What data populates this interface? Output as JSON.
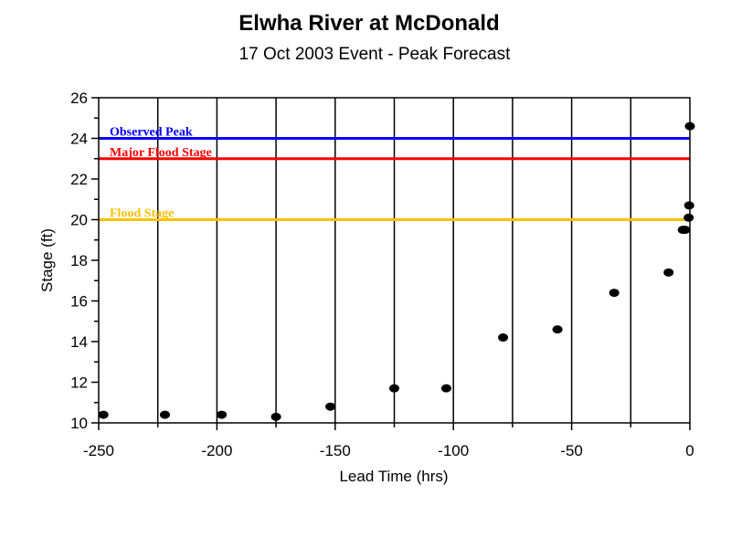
{
  "chart_data": {
    "type": "scatter",
    "title": "Elwha River at McDonald",
    "subtitle": "17 Oct 2003 Event - Peak Forecast",
    "xlabel": "Lead Time (hrs)",
    "ylabel": "Stage (ft)",
    "xlim": [
      -250,
      0
    ],
    "ylim": [
      10,
      26
    ],
    "x_ticks": [
      -250,
      -200,
      -150,
      -100,
      -50,
      0
    ],
    "y_ticks": [
      10,
      12,
      14,
      16,
      18,
      20,
      22,
      24,
      26
    ],
    "grid": "vertical",
    "reference_lines": [
      {
        "label": "Observed Peak",
        "y": 24.0,
        "color": "#0000ff"
      },
      {
        "label": "Major Flood Stage",
        "y": 23.0,
        "color": "#ff0000"
      },
      {
        "label": "Flood Stage",
        "y": 20.0,
        "color": "#ffc000"
      }
    ],
    "points": [
      {
        "x": -248,
        "y": 10.4
      },
      {
        "x": -222,
        "y": 10.4
      },
      {
        "x": -198,
        "y": 10.4
      },
      {
        "x": -175,
        "y": 10.3
      },
      {
        "x": -152,
        "y": 10.8
      },
      {
        "x": -125,
        "y": 11.7
      },
      {
        "x": -103,
        "y": 11.7
      },
      {
        "x": -79,
        "y": 14.2
      },
      {
        "x": -56,
        "y": 14.6
      },
      {
        "x": -32,
        "y": 16.4
      },
      {
        "x": -9,
        "y": 17.4
      },
      {
        "x": -3,
        "y": 19.5
      },
      {
        "x": -2,
        "y": 19.5
      },
      {
        "x": -0.5,
        "y": 20.1
      },
      {
        "x": -0.3,
        "y": 20.7
      },
      {
        "x": 0,
        "y": 24.6
      }
    ]
  }
}
